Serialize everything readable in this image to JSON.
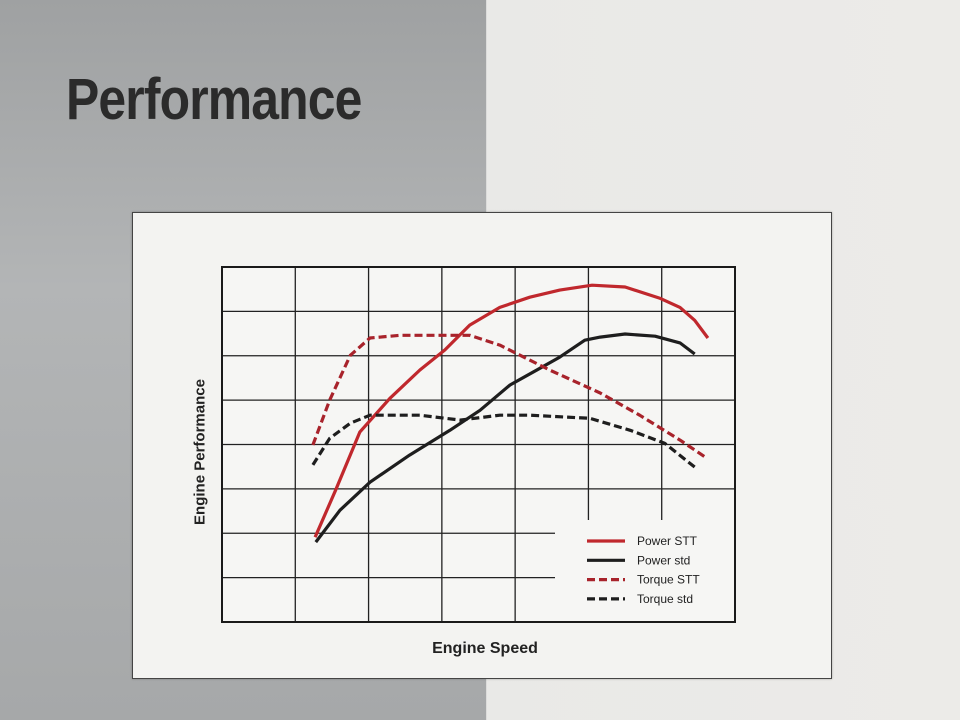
{
  "page_title": "Performance",
  "chart_data": {
    "type": "line",
    "title": "",
    "xlabel": "Engine Speed",
    "ylabel": "Engine Performance",
    "xlim": [
      0,
      7
    ],
    "ylim": [
      0,
      8
    ],
    "grid": true,
    "tick_labels": "none",
    "legend_placement": "bottom-right",
    "series": [
      {
        "name": "Power STT",
        "color": "#c0282d",
        "dash": false,
        "x": [
          1.27,
          1.55,
          1.88,
          2.29,
          2.7,
          3.04,
          3.38,
          3.79,
          4.2,
          4.61,
          5.05,
          5.5,
          5.97,
          6.25,
          6.45,
          6.63
        ],
        "y": [
          1.91,
          2.97,
          4.28,
          5.04,
          5.68,
          6.13,
          6.69,
          7.09,
          7.32,
          7.48,
          7.59,
          7.55,
          7.3,
          7.09,
          6.8,
          6.4
        ]
      },
      {
        "name": "Power std",
        "color": "#1e1e1e",
        "dash": false,
        "x": [
          1.28,
          1.61,
          2.02,
          2.56,
          3.11,
          3.52,
          3.93,
          4.34,
          4.61,
          4.95,
          5.16,
          5.5,
          5.91,
          6.25,
          6.45
        ],
        "y": [
          1.8,
          2.52,
          3.15,
          3.76,
          4.32,
          4.77,
          5.34,
          5.72,
          5.97,
          6.35,
          6.42,
          6.49,
          6.44,
          6.29,
          6.04
        ]
      },
      {
        "name": "Torque STT",
        "color": "#a8232b",
        "dash": true,
        "x": [
          1.24,
          1.47,
          1.75,
          2.02,
          2.43,
          3.38,
          3.79,
          4.47,
          5.16,
          5.7,
          6.25,
          6.59
        ],
        "y": [
          3.99,
          5.0,
          6.01,
          6.4,
          6.46,
          6.46,
          6.24,
          5.68,
          5.16,
          4.66,
          4.1,
          3.72
        ]
      },
      {
        "name": "Torque std",
        "color": "#1e1e1e",
        "dash": true,
        "x": [
          1.24,
          1.47,
          1.75,
          2.02,
          2.7,
          3.25,
          3.79,
          4.2,
          5.02,
          5.57,
          6.04,
          6.45
        ],
        "y": [
          3.54,
          4.14,
          4.48,
          4.66,
          4.66,
          4.55,
          4.66,
          4.66,
          4.59,
          4.32,
          4.03,
          3.49
        ]
      }
    ]
  }
}
